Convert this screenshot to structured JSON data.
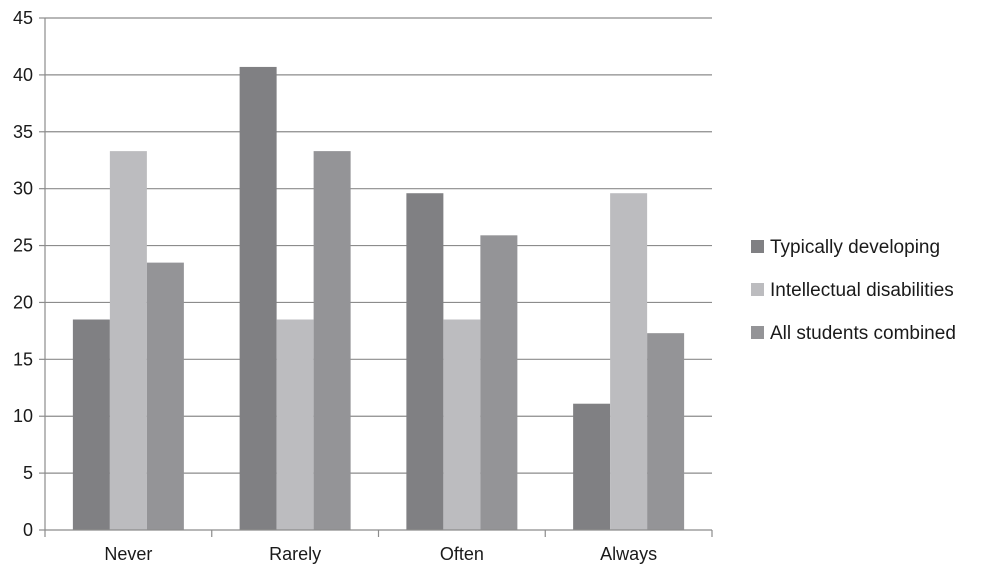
{
  "chart_data": {
    "type": "bar",
    "title": "",
    "xlabel": "",
    "ylabel": "",
    "categories": [
      "Never",
      "Rarely",
      "Often",
      "Always"
    ],
    "ylim": [
      0,
      45
    ],
    "yticks": [
      0,
      5,
      10,
      15,
      20,
      25,
      30,
      35,
      40,
      45
    ],
    "grid": true,
    "legend_position": "right",
    "series": [
      {
        "name": "Typically developing",
        "color": "#808083",
        "values": [
          18.5,
          40.7,
          29.6,
          11.1
        ]
      },
      {
        "name": "Intellectual disabilities",
        "color": "#bcbcbf",
        "values": [
          33.3,
          18.5,
          18.5,
          29.6
        ]
      },
      {
        "name": "All students combined",
        "color": "#949497",
        "values": [
          23.5,
          33.3,
          25.9,
          17.3
        ]
      }
    ]
  }
}
